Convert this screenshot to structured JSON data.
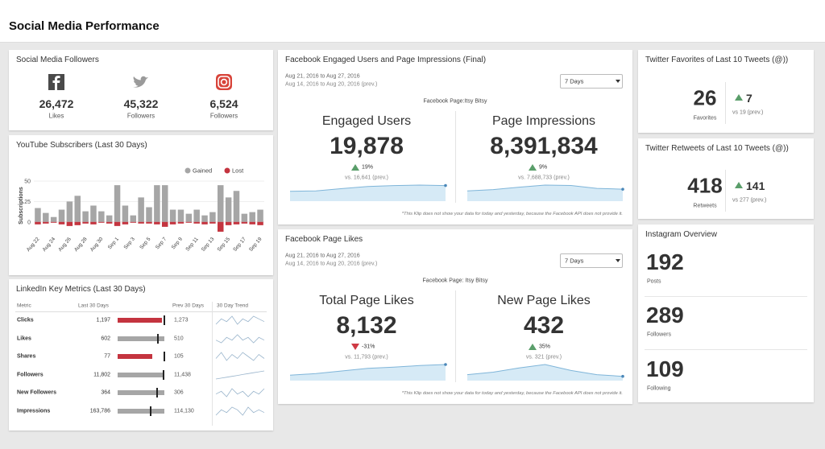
{
  "theme": {
    "up": "#5a9e6a",
    "down": "#cf3a44",
    "area": "#d6eaf6",
    "line": "#7fb5d9"
  },
  "header": {
    "title": "Social Media Performance"
  },
  "followers": {
    "title": "Social Media Followers",
    "items": [
      {
        "value": "26,472",
        "label": "Likes"
      },
      {
        "value": "45,322",
        "label": "Followers"
      },
      {
        "value": "6,524",
        "label": "Followers"
      }
    ]
  },
  "youtube": {
    "title": "YouTube Subscribers (Last 30 Days)",
    "chart_data": {
      "type": "bar",
      "y_label": "Subscriptions",
      "legend": "top-right",
      "grid": true,
      "categories": [
        "Aug 22",
        null,
        "Aug 24",
        null,
        "Aug 26",
        null,
        "Aug 28",
        null,
        "Aug 30",
        null,
        "Sep 1",
        null,
        "Sep 3",
        null,
        "Sep 5",
        null,
        "Sep 7",
        null,
        "Sep 9",
        null,
        "Sep 11",
        null,
        "Sep 13",
        null,
        "Sep 15",
        null,
        "Sep 17",
        null,
        "Sep 19"
      ],
      "series": [
        {
          "name": "Gained",
          "color": "#a6a6a6",
          "values": [
            17,
            11,
            6,
            15,
            25,
            32,
            13,
            20,
            13,
            8,
            45,
            20,
            8,
            30,
            18,
            45,
            45,
            15,
            15,
            10,
            15,
            8,
            12,
            45,
            30,
            38,
            10,
            12,
            15
          ]
        },
        {
          "name": "Lost",
          "color": "#c4343f",
          "values": [
            -3,
            -2,
            -1,
            -3,
            -5,
            -4,
            -2,
            -3,
            -1,
            -2,
            -5,
            -3,
            -1,
            -2,
            -2,
            -3,
            -6,
            -3,
            -2,
            -1,
            -2,
            -3,
            -2,
            -12,
            -4,
            -3,
            -2,
            -3,
            -4
          ]
        }
      ],
      "ylim": [
        -15,
        55
      ],
      "yticks": [
        0,
        25,
        50
      ]
    }
  },
  "linkedin": {
    "title": "LinkedIn Key Metrics (Last 30 Days)",
    "columns": [
      "Metric",
      "Last 30 Days",
      "Prev 30 Days",
      "30 Day Trend"
    ],
    "colors": {
      "below": "#c4343f",
      "above": "#a6a6a6"
    },
    "rows": [
      {
        "metric": "Clicks",
        "last": {
          "value": 1197,
          "label": "1,197"
        },
        "prev": {
          "value": 1273,
          "label": "1,273"
        },
        "trend": [
          3,
          5,
          4,
          6,
          3,
          5,
          4,
          6,
          5,
          4
        ]
      },
      {
        "metric": "Likes",
        "last": {
          "value": 602,
          "label": "602"
        },
        "prev": {
          "value": 510,
          "label": "510"
        },
        "trend": [
          4,
          3,
          5,
          4,
          6,
          4,
          5,
          3,
          5,
          4
        ]
      },
      {
        "metric": "Shares",
        "last": {
          "value": 77,
          "label": "77"
        },
        "prev": {
          "value": 105,
          "label": "105"
        },
        "trend": [
          3,
          6,
          2,
          5,
          3,
          6,
          4,
          2,
          5,
          3
        ]
      },
      {
        "metric": "Followers",
        "last": {
          "value": 11802,
          "label": "11,802"
        },
        "prev": {
          "value": 11438,
          "label": "11,438"
        },
        "trend": [
          2,
          2.5,
          3,
          3.5,
          4,
          4.5,
          5,
          5.5,
          6,
          6.5
        ]
      },
      {
        "metric": "New Followers",
        "last": {
          "value": 364,
          "label": "364"
        },
        "prev": {
          "value": 306,
          "label": "306"
        },
        "trend": [
          4,
          5,
          3,
          6,
          4,
          5,
          3,
          5,
          4,
          6
        ]
      },
      {
        "metric": "Impressions",
        "last": {
          "value": 163786,
          "label": "163,786"
        },
        "prev": {
          "value": 114130,
          "label": "114,130"
        },
        "trend": [
          3,
          5,
          4,
          6,
          5,
          3,
          6,
          4,
          5,
          4
        ]
      }
    ]
  },
  "facebook_engaged": {
    "title": "Facebook Engaged Users and Page Impressions (Final)",
    "date_range": "Aug 21, 2016 to Aug 27, 2016",
    "prev_range": "Aug 14, 2016 to Aug 20, 2016 (prev.)",
    "period": "7 Days",
    "page": "Facebook Page:Itsy Bitsy",
    "metrics": [
      {
        "name": "Engaged Users",
        "value": "19,878",
        "change": {
          "value": 19,
          "label": "19%"
        },
        "prev": "vs. 16,641 (prev.)",
        "trend": [
          2.2,
          2.3,
          2.8,
          3.3,
          3.5,
          3.6,
          3.5
        ]
      },
      {
        "name": "Page Impressions",
        "value": "8,391,834",
        "change": {
          "value": 9,
          "label": "9%"
        },
        "prev": "vs. 7,688,733 (prev.)",
        "trend": [
          2.5,
          2.8,
          3.4,
          3.9,
          3.8,
          3.1,
          2.9
        ]
      }
    ],
    "note": "*This Klip does not show your data for today and yesterday, because the Facebook API does not provide it."
  },
  "facebook_likes": {
    "title": "Facebook Page Likes",
    "date_range": "Aug 21, 2016 to Aug 27, 2016",
    "prev_range": "Aug 14, 2016 to Aug 20, 2016 (prev.)",
    "period": "7 Days",
    "page": "Facebook Page: Itsy Bitsy",
    "metrics": [
      {
        "name": "Total Page Likes",
        "value": "8,132",
        "change": {
          "value": -31,
          "label": "-31%"
        },
        "prev": "vs. 11,793 (prev.)",
        "trend": [
          1,
          1.3,
          1.8,
          2.3,
          2.5,
          2.8,
          3.0
        ]
      },
      {
        "name": "New Page Likes",
        "value": "432",
        "change": {
          "value": 35,
          "label": "35%"
        },
        "prev": "vs. 321 (prev.)",
        "trend": [
          3.5,
          5,
          7.5,
          9.5,
          6,
          3.5,
          2.5
        ]
      }
    ],
    "note": "*This Klip does not show your data for today and yesterday, because the Facebook API does not provide it."
  },
  "twitter": [
    {
      "title": "Twitter Favorites of Last 10 Tweets (@))",
      "value": 26,
      "label": "Favorites",
      "change": 7,
      "prev": "vs 19 (prev.)"
    },
    {
      "title": "Twitter Retweets of Last 10 Tweets (@))",
      "value": 418,
      "label": "Retweets",
      "change": 141,
      "prev": "vs 277 (prev.)"
    }
  ],
  "instagram": {
    "title": "Instagram Overview",
    "items": [
      {
        "value": 192,
        "label": "Posts"
      },
      {
        "value": 289,
        "label": "Followers"
      },
      {
        "value": 109,
        "label": "Following"
      }
    ]
  }
}
